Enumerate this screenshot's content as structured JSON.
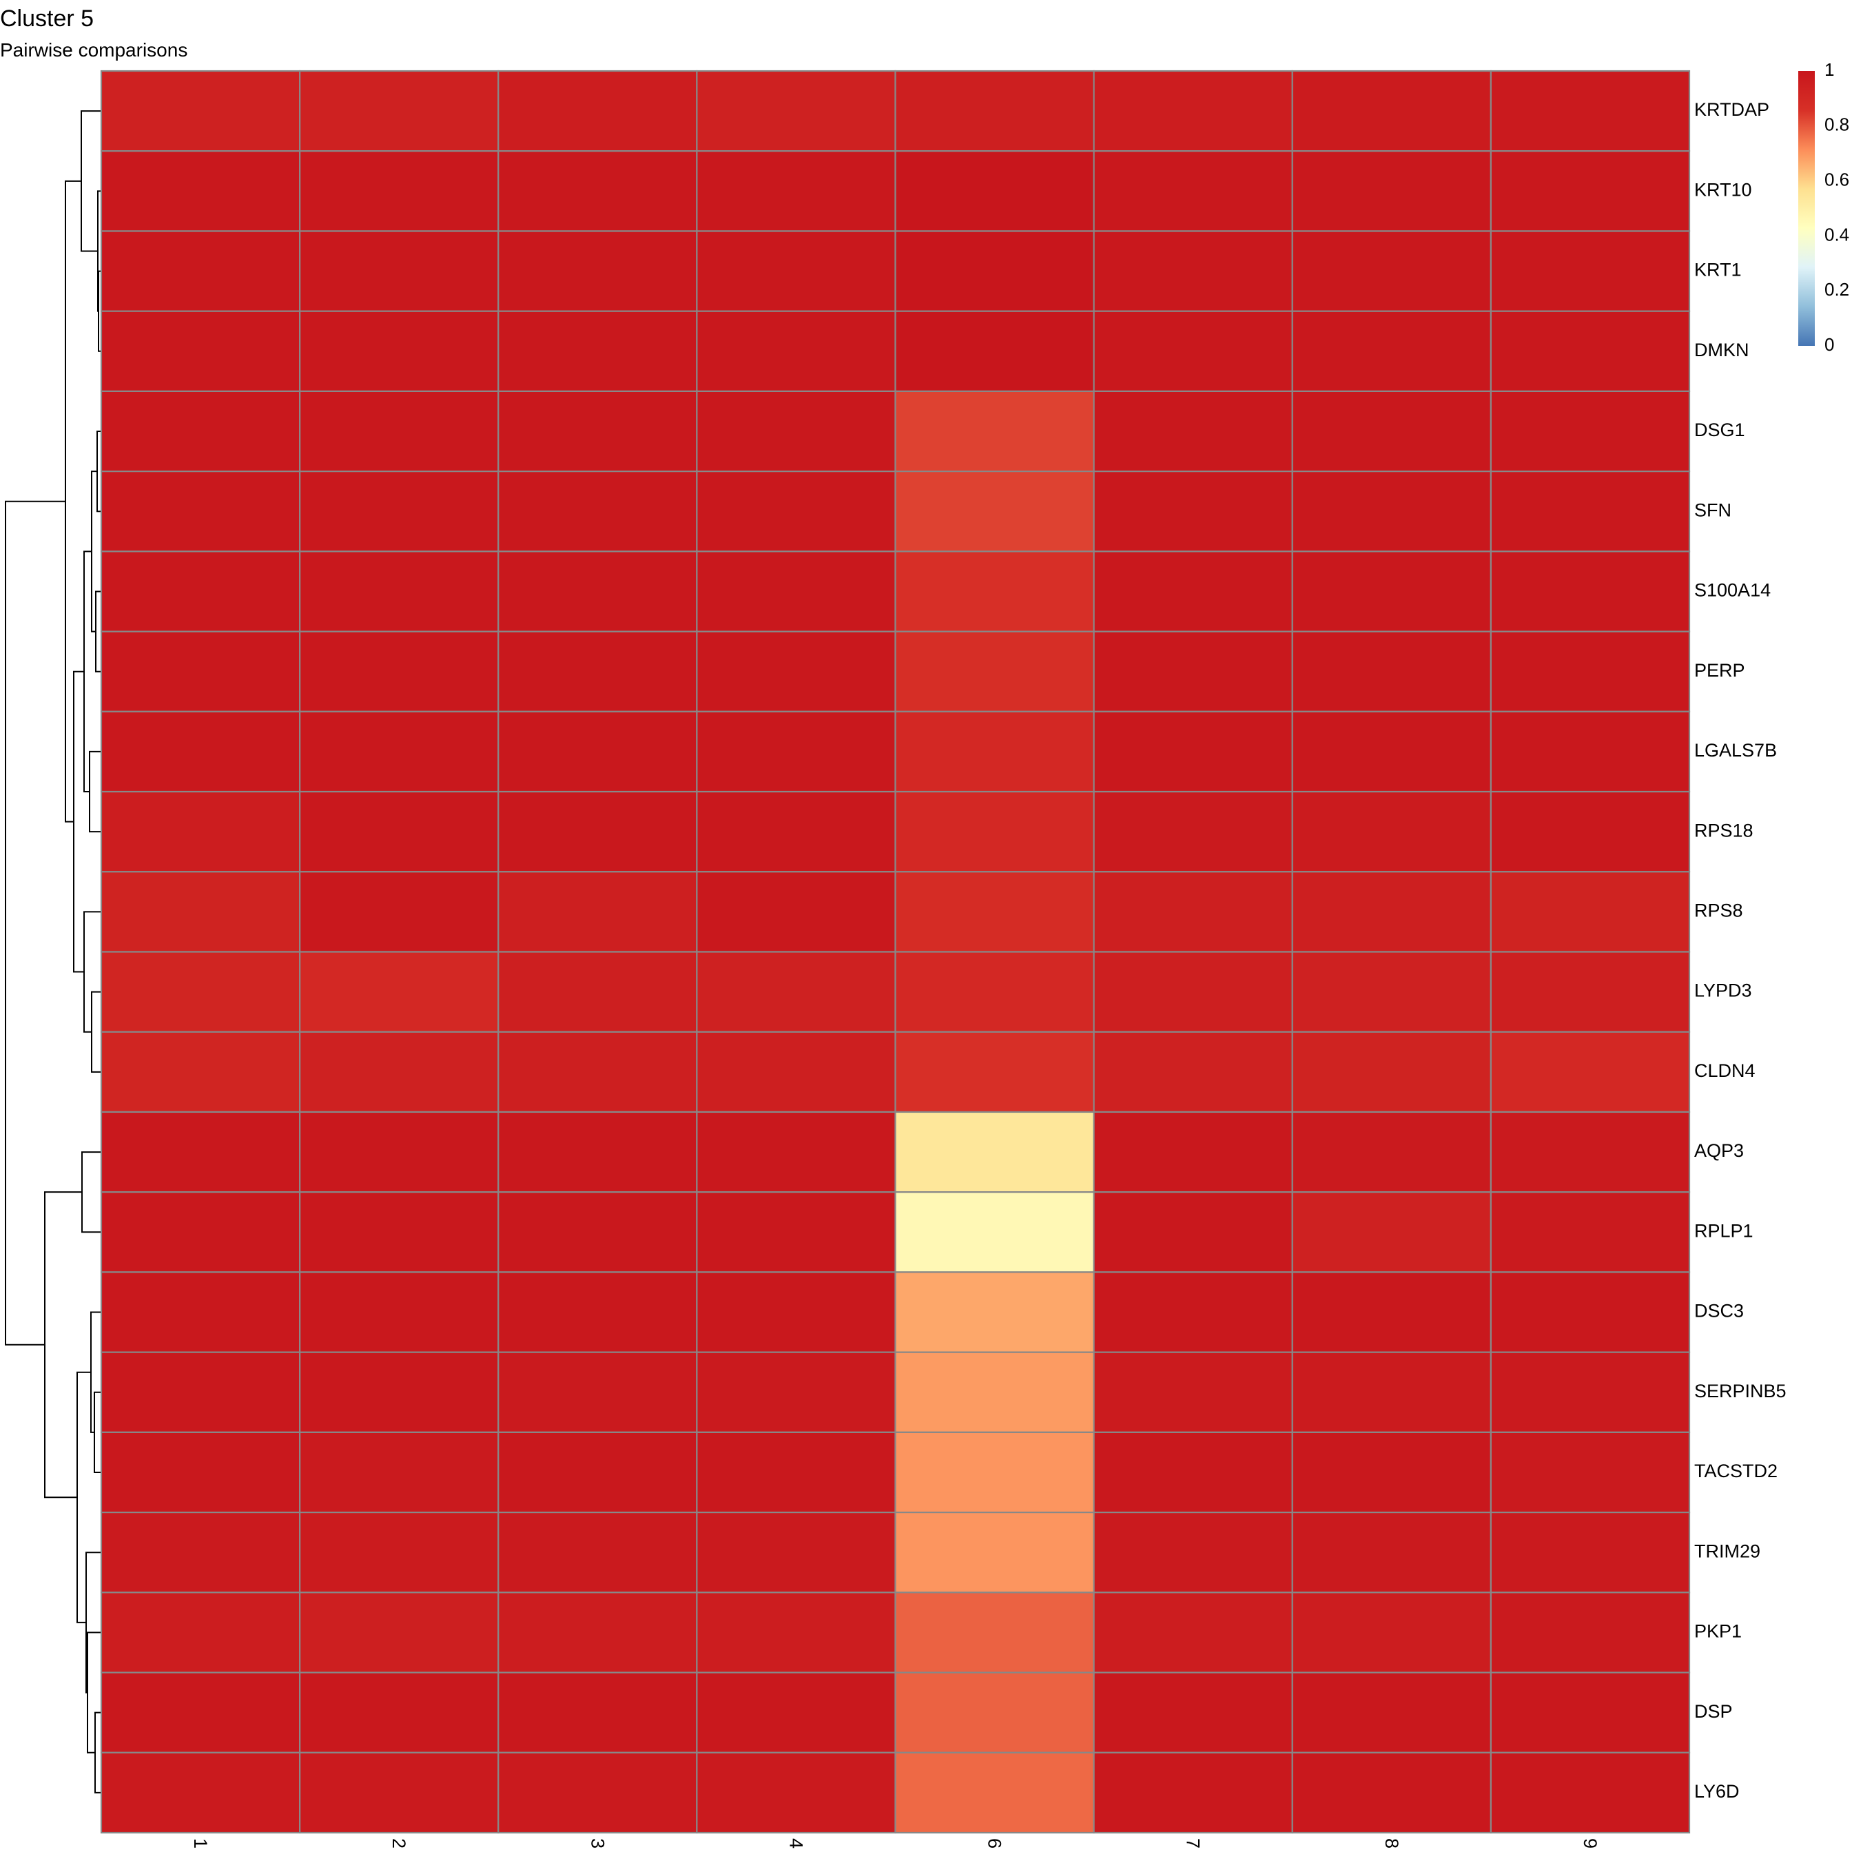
{
  "chart_data": {
    "type": "heatmap",
    "title": "Cluster 5",
    "subtitle": "Pairwise comparisons",
    "columns": [
      "1",
      "2",
      "3",
      "4",
      "6",
      "7",
      "8",
      "9"
    ],
    "rows": [
      "KRTDAP",
      "KRT10",
      "KRT1",
      "DMKN",
      "DSG1",
      "SFN",
      "S100A14",
      "PERP",
      "LGALS7B",
      "RPS18",
      "RPS8",
      "LYPD3",
      "CLDN4",
      "AQP3",
      "RPLP1",
      "DSC3",
      "SERPINB5",
      "TACSTD2",
      "TRIM29",
      "PKP1",
      "DSP",
      "LY6D"
    ],
    "values": [
      [
        0.94,
        0.94,
        0.96,
        0.94,
        0.95,
        0.96,
        0.97,
        0.98
      ],
      [
        0.99,
        0.99,
        0.99,
        0.99,
        1.0,
        0.99,
        0.99,
        0.99
      ],
      [
        0.99,
        0.99,
        0.99,
        0.99,
        1.0,
        0.99,
        0.99,
        0.99
      ],
      [
        0.99,
        0.99,
        0.99,
        0.99,
        1.0,
        0.99,
        0.99,
        0.99
      ],
      [
        0.99,
        0.99,
        0.99,
        0.99,
        0.83,
        0.99,
        0.99,
        0.99
      ],
      [
        0.99,
        0.99,
        0.99,
        0.99,
        0.83,
        0.99,
        0.99,
        0.99
      ],
      [
        0.99,
        0.99,
        0.99,
        0.99,
        0.86,
        0.99,
        0.99,
        0.99
      ],
      [
        0.99,
        0.99,
        0.99,
        0.99,
        0.87,
        0.99,
        0.99,
        0.99
      ],
      [
        0.99,
        0.99,
        0.99,
        0.99,
        0.9,
        0.99,
        0.99,
        0.99
      ],
      [
        0.96,
        0.99,
        0.99,
        0.99,
        0.9,
        0.98,
        0.97,
        0.99
      ],
      [
        0.93,
        0.99,
        0.95,
        0.99,
        0.88,
        0.95,
        0.95,
        0.93
      ],
      [
        0.92,
        0.9,
        0.95,
        0.94,
        0.9,
        0.95,
        0.94,
        0.95
      ],
      [
        0.92,
        0.94,
        0.95,
        0.95,
        0.86,
        0.94,
        0.93,
        0.9
      ],
      [
        0.99,
        0.99,
        0.99,
        0.99,
        0.54,
        0.99,
        0.98,
        0.98
      ],
      [
        0.99,
        0.99,
        0.99,
        0.99,
        0.46,
        0.99,
        0.94,
        0.98
      ],
      [
        0.99,
        0.99,
        0.99,
        0.99,
        0.67,
        0.99,
        0.99,
        0.99
      ],
      [
        0.99,
        0.99,
        0.98,
        0.98,
        0.69,
        0.97,
        0.97,
        0.98
      ],
      [
        0.99,
        0.98,
        0.99,
        0.99,
        0.7,
        0.99,
        0.99,
        0.98
      ],
      [
        0.98,
        0.97,
        0.98,
        0.98,
        0.7,
        0.98,
        0.98,
        0.98
      ],
      [
        0.96,
        0.95,
        0.96,
        0.96,
        0.78,
        0.96,
        0.96,
        0.98
      ],
      [
        0.99,
        0.99,
        0.99,
        0.99,
        0.78,
        0.99,
        0.99,
        0.99
      ],
      [
        0.98,
        0.98,
        0.98,
        0.98,
        0.77,
        0.99,
        0.99,
        0.99
      ]
    ],
    "legend": {
      "ticks": [
        "0",
        "0.2",
        "0.4",
        "0.6",
        "0.8",
        "1"
      ],
      "range": [
        0,
        1
      ],
      "colors": [
        "#4575b4",
        "#91bfdb",
        "#e0f3f8",
        "#ffffbf",
        "#fee090",
        "#fc8d59",
        "#d73027",
        "#c8161c"
      ],
      "placement": "top-right"
    },
    "row_dendrogram": true,
    "grid_color": "#888888"
  }
}
